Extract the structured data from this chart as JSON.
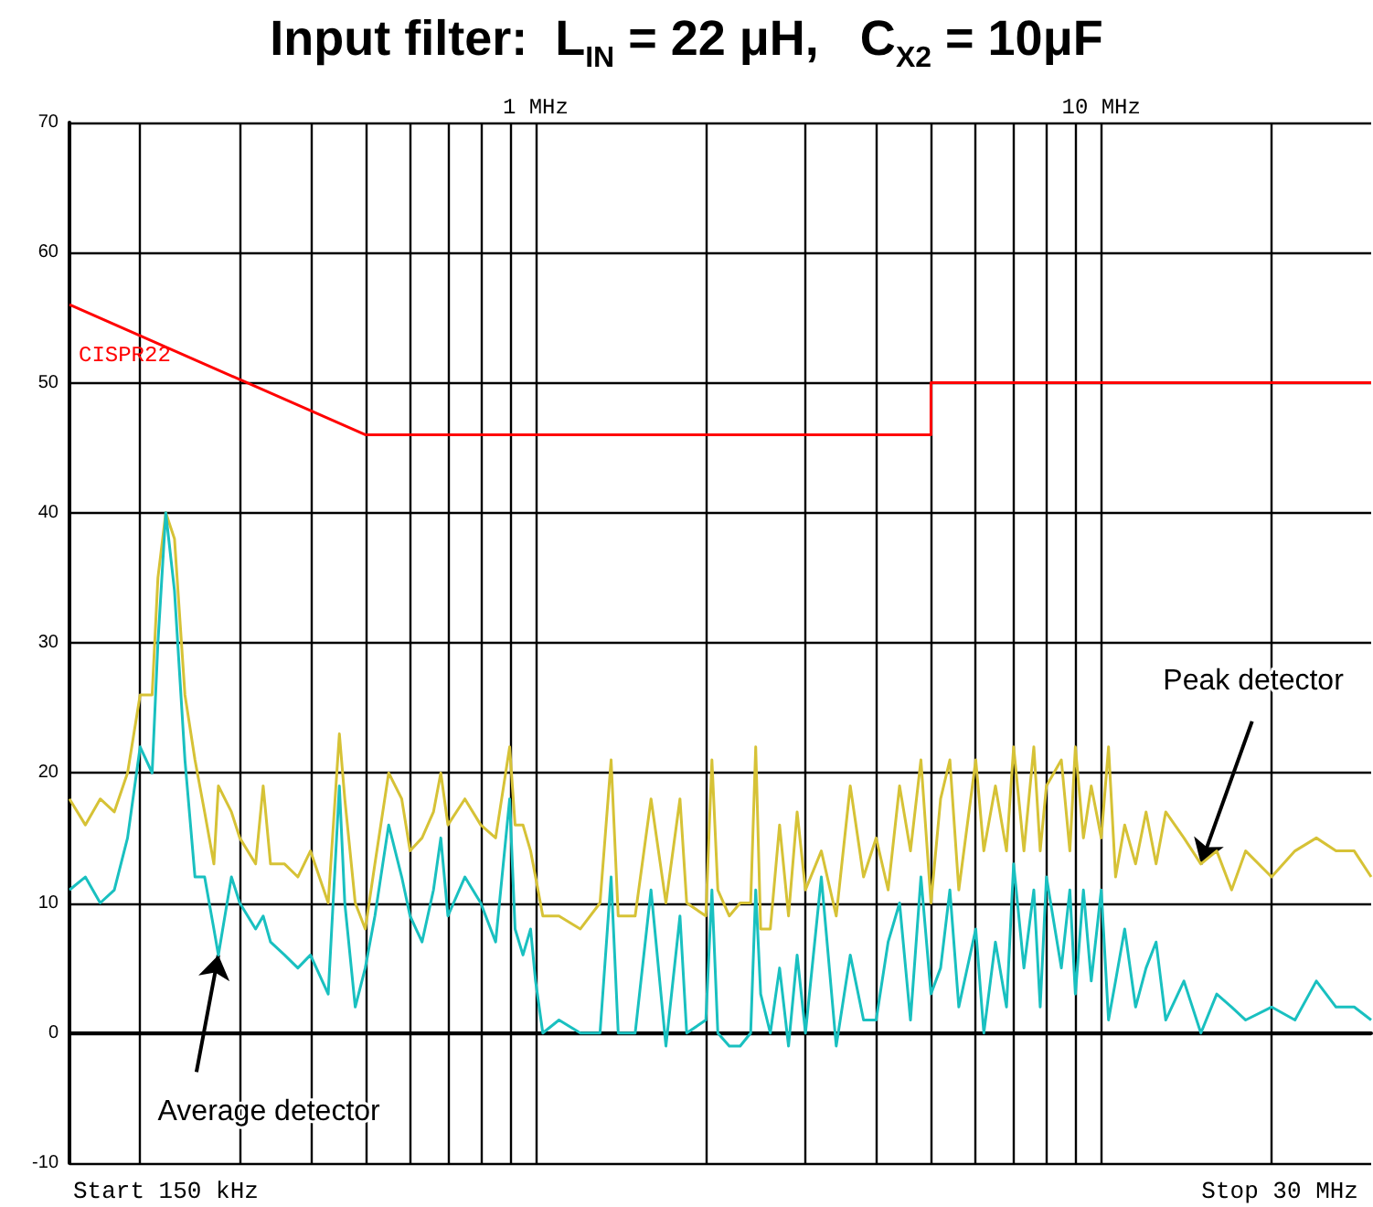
{
  "chart_data": {
    "type": "line",
    "title": "Input filter:  L$_{IN}$ = 22 μH,   C$_{X2}$ = 10μF",
    "x": [
      0.15,
      0.16,
      0.17,
      0.18,
      0.19,
      0.2,
      0.21,
      0.215,
      0.222,
      0.23,
      0.24,
      0.25,
      0.26,
      0.27,
      0.275,
      0.29,
      0.3,
      0.32,
      0.33,
      0.34,
      0.36,
      0.38,
      0.4,
      0.43,
      0.45,
      0.46,
      0.48,
      0.5,
      0.52,
      0.55,
      0.58,
      0.6,
      0.63,
      0.66,
      0.68,
      0.7,
      0.75,
      0.8,
      0.85,
      0.9,
      0.92,
      0.95,
      0.98,
      1.0,
      1.03,
      1.1,
      1.2,
      1.3,
      1.36,
      1.4,
      1.5,
      1.6,
      1.7,
      1.8,
      1.85,
      2.0,
      2.05,
      2.1,
      2.2,
      2.3,
      2.4,
      2.45,
      2.5,
      2.6,
      2.7,
      2.8,
      2.9,
      3.0,
      3.2,
      3.4,
      3.6,
      3.8,
      4.0,
      4.2,
      4.4,
      4.6,
      4.8,
      5.0,
      5.2,
      5.4,
      5.6,
      6.0,
      6.2,
      6.5,
      6.8,
      7.0,
      7.3,
      7.6,
      7.8,
      8.0,
      8.5,
      8.8,
      9.0,
      9.3,
      9.6,
      10,
      10.3,
      10.6,
      11,
      11.5,
      12,
      12.5,
      13,
      14,
      15,
      16,
      17,
      18,
      20,
      22,
      24,
      26,
      28,
      30
    ],
    "series": [
      {
        "name": "CISPR22",
        "color": "#ff0000",
        "x": [
          0.15,
          0.5,
          5,
          5,
          30
        ],
        "values": [
          56,
          46,
          46,
          50,
          50
        ]
      },
      {
        "color": "#d6c236",
        "values": [
          18,
          16,
          18,
          17,
          20,
          26,
          26,
          35,
          40,
          38,
          26,
          21,
          17,
          13,
          19,
          17,
          15,
          13,
          19,
          13,
          13,
          12,
          14,
          10,
          23,
          18,
          10,
          8,
          13,
          20,
          18,
          14,
          15,
          17,
          20,
          16,
          18,
          16,
          15,
          22,
          16,
          16,
          14,
          12,
          9,
          9,
          8,
          10,
          21,
          9,
          9,
          18,
          10,
          18,
          10,
          9,
          21,
          11,
          9,
          10,
          10,
          22,
          8,
          8,
          16,
          9,
          17,
          11,
          14,
          9,
          19,
          12,
          15,
          11,
          19,
          14,
          21,
          10,
          18,
          21,
          11,
          21,
          14,
          19,
          14,
          22,
          14,
          22,
          14,
          19,
          21,
          14,
          22,
          15,
          19,
          15,
          22,
          12,
          16,
          13,
          17,
          13,
          17,
          15,
          13,
          14,
          11,
          14,
          12,
          14,
          15,
          14,
          14,
          12
        ]
      },
      {
        "color": "#19c0c0",
        "values": [
          11,
          12,
          10,
          11,
          15,
          22,
          20,
          30,
          40,
          34,
          21,
          12,
          12,
          8,
          6,
          12,
          10,
          8,
          9,
          7,
          6,
          5,
          6,
          3,
          19,
          10,
          2,
          5,
          9,
          16,
          12,
          9,
          7,
          11,
          15,
          9,
          12,
          10,
          7,
          18,
          8,
          6,
          8,
          4,
          0,
          1,
          0,
          0,
          12,
          0,
          0,
          11,
          -1,
          9,
          0,
          1,
          11,
          0,
          -1,
          -1,
          0,
          11,
          3,
          0,
          5,
          -1,
          6,
          0,
          12,
          -1,
          6,
          1,
          1,
          7,
          10,
          1,
          12,
          3,
          5,
          11,
          2,
          8,
          0,
          7,
          2,
          13,
          5,
          11,
          2,
          12,
          5,
          11,
          3,
          11,
          4,
          11,
          1,
          4,
          8,
          2,
          5,
          7,
          1,
          4,
          0,
          3,
          2,
          1,
          2,
          1,
          4,
          2,
          2,
          1
        ]
      }
    ],
    "log": "x",
    "xlim": [
      0.15,
      30
    ],
    "xticks": [
      {
        "value": 0.2,
        "label": null
      },
      {
        "value": 0.3,
        "label": null
      },
      {
        "value": 0.4,
        "label": null
      },
      {
        "value": 0.5,
        "label": null
      },
      {
        "value": 0.6,
        "label": null
      },
      {
        "value": 0.7,
        "label": null
      },
      {
        "value": 0.8,
        "label": null
      },
      {
        "value": 0.9,
        "label": null
      },
      {
        "value": 1,
        "label": "1 MHz"
      },
      {
        "value": 2,
        "label": null
      },
      {
        "value": 3,
        "label": null
      },
      {
        "value": 4,
        "label": null
      },
      {
        "value": 5,
        "label": null
      },
      {
        "value": 6,
        "label": null
      },
      {
        "value": 7,
        "label": null
      },
      {
        "value": 8,
        "label": null
      },
      {
        "value": 9,
        "label": null
      },
      {
        "value": 10,
        "label": "10 MHz"
      },
      {
        "value": 20,
        "label": null
      }
    ],
    "ylim": [
      -10,
      70
    ],
    "yticks": [
      -10,
      0,
      10,
      20,
      30,
      40,
      50,
      60,
      70
    ],
    "grid": true,
    "annotations": [
      {
        "text": "Peak detector",
        "x": 15,
        "y": 13
      },
      {
        "text": "Average detector",
        "x": 0.275,
        "y": 6
      },
      "Start 150 kHz",
      "Stop 30 MHz"
    ]
  }
}
